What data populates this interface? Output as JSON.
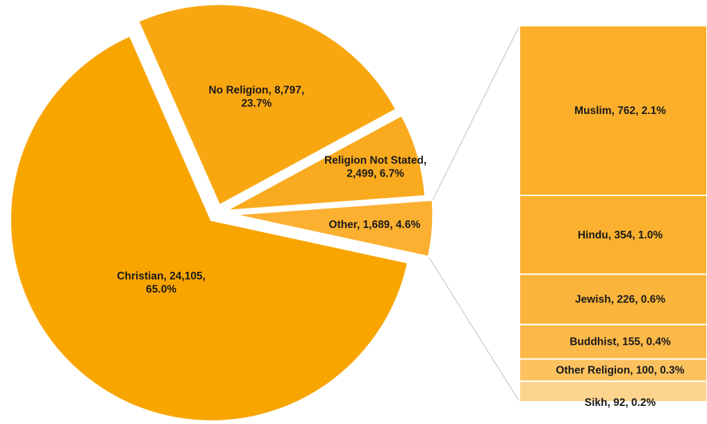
{
  "chart_data": {
    "type": "pie",
    "title": "",
    "pie": {
      "slices": [
        {
          "category": "Christian",
          "value": 24105,
          "percent": "65.0%",
          "label_lines": [
            "Christian, 24,105,",
            "65.0%"
          ],
          "color": "#F9A500"
        },
        {
          "category": "No Religion",
          "value": 8797,
          "percent": "23.7%",
          "label_lines": [
            "No Religion, 8,797,",
            "23.7%"
          ],
          "color": "#F9A711"
        },
        {
          "category": "Religion Not Stated",
          "value": 2499,
          "percent": "6.7%",
          "label_lines": [
            "Religion Not Stated,",
            "2,499, 6.7%"
          ],
          "color": "#F9AA1E"
        },
        {
          "category": "Other",
          "value": 1689,
          "percent": "4.6%",
          "label_lines": [
            "Other, 1,689, 4.6%"
          ],
          "color": "#FCB031"
        }
      ]
    },
    "breakdown": {
      "parent": "Other",
      "type": "stacked-bar",
      "segments": [
        {
          "category": "Muslim",
          "value": 762,
          "percent": "2.1%",
          "label": "Muslim, 762, 2.1%",
          "color": "#FBAF2A"
        },
        {
          "category": "Hindu",
          "value": 354,
          "percent": "1.0%",
          "label": "Hindu, 354, 1.0%",
          "color": "#FBB12F"
        },
        {
          "category": "Jewish",
          "value": 226,
          "percent": "0.6%",
          "label": "Jewish, 226, 0.6%",
          "color": "#FBB53C"
        },
        {
          "category": "Buddhist",
          "value": 155,
          "percent": "0.4%",
          "label": "Buddhist, 155, 0.4%",
          "color": "#FBB94A"
        },
        {
          "category": "Other Religion",
          "value": 100,
          "percent": "0.3%",
          "label": "Other Religion, 100, 0.3%",
          "color": "#FCC260"
        },
        {
          "category": "Sikh",
          "value": 92,
          "percent": "0.2%",
          "label": "Sikh, 92, 0.2%",
          "color": "#FDD48E"
        }
      ]
    }
  }
}
